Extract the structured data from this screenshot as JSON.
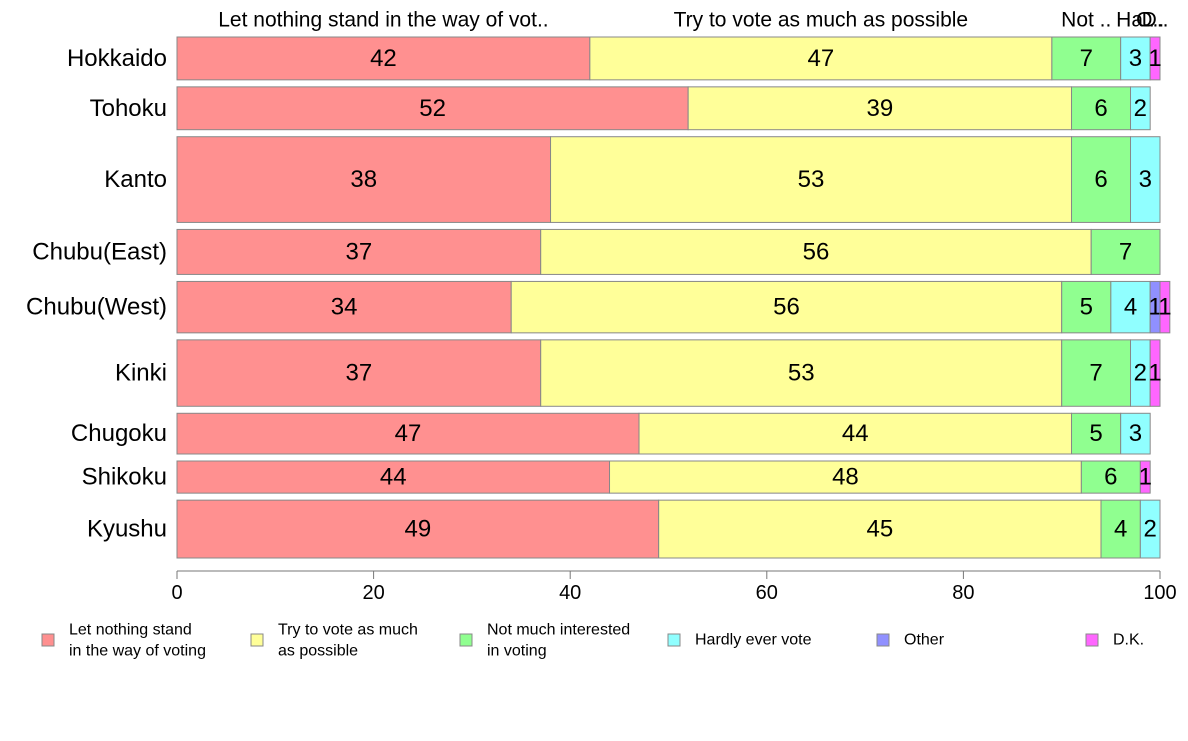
{
  "chart_data": {
    "type": "bar",
    "orientation": "horizontal",
    "stacked": true,
    "categories": [
      "Hokkaido",
      "Tohoku",
      "Kanto",
      "Chubu(East)",
      "Chubu(West)",
      "Kinki",
      "Chugoku",
      "Shikoku",
      "Kyushu"
    ],
    "series": [
      {
        "name": "Let nothing stand in the way of voting",
        "top_label": "Let nothing stand in the way of vot..",
        "color": "#FF9090",
        "values": [
          42,
          52,
          38,
          37,
          34,
          37,
          47,
          44,
          49
        ]
      },
      {
        "name": "Try to vote as much as possible",
        "top_label": "Try to vote as much as possible",
        "color": "#FFFF99",
        "values": [
          47,
          39,
          53,
          56,
          56,
          53,
          44,
          48,
          45
        ]
      },
      {
        "name": "Not much interested in voting",
        "top_label": "Not ..",
        "color": "#90FF90",
        "values": [
          7,
          6,
          6,
          7,
          5,
          7,
          5,
          6,
          4
        ]
      },
      {
        "name": "Hardly ever vote",
        "top_label": "Ha..",
        "color": "#90FFFF",
        "values": [
          3,
          2,
          3,
          0,
          4,
          2,
          3,
          0,
          2
        ]
      },
      {
        "name": "Other",
        "top_label": "O..",
        "color": "#9090FF",
        "values": [
          0,
          0,
          0,
          0,
          1,
          0,
          0,
          0,
          0
        ]
      },
      {
        "name": "D.K.",
        "top_label": "D..",
        "color": "#FF66FF",
        "values": [
          1,
          0,
          0,
          0,
          1,
          1,
          0,
          1,
          0
        ]
      }
    ],
    "xlim": [
      0,
      100
    ],
    "xticks": [
      0,
      20,
      40,
      60,
      80,
      100
    ],
    "legend": {
      "position": "bottom",
      "entries": [
        {
          "lines": [
            "Let nothing stand",
            "in the way of voting"
          ],
          "color": "#FF9090"
        },
        {
          "lines": [
            "Try to vote as much",
            "as possible"
          ],
          "color": "#FFFF99"
        },
        {
          "lines": [
            "Not much interested",
            "in voting"
          ],
          "color": "#90FF90"
        },
        {
          "lines": [
            "Hardly ever vote"
          ],
          "color": "#90FFFF"
        },
        {
          "lines": [
            "Other"
          ],
          "color": "#9090FF"
        },
        {
          "lines": [
            "D.K."
          ],
          "color": "#FF66FF"
        }
      ]
    },
    "bar_widths": [
      1.0,
      1.0,
      2.0,
      1.05,
      1.2,
      1.55,
      0.95,
      0.75,
      1.35
    ],
    "grid": false
  }
}
